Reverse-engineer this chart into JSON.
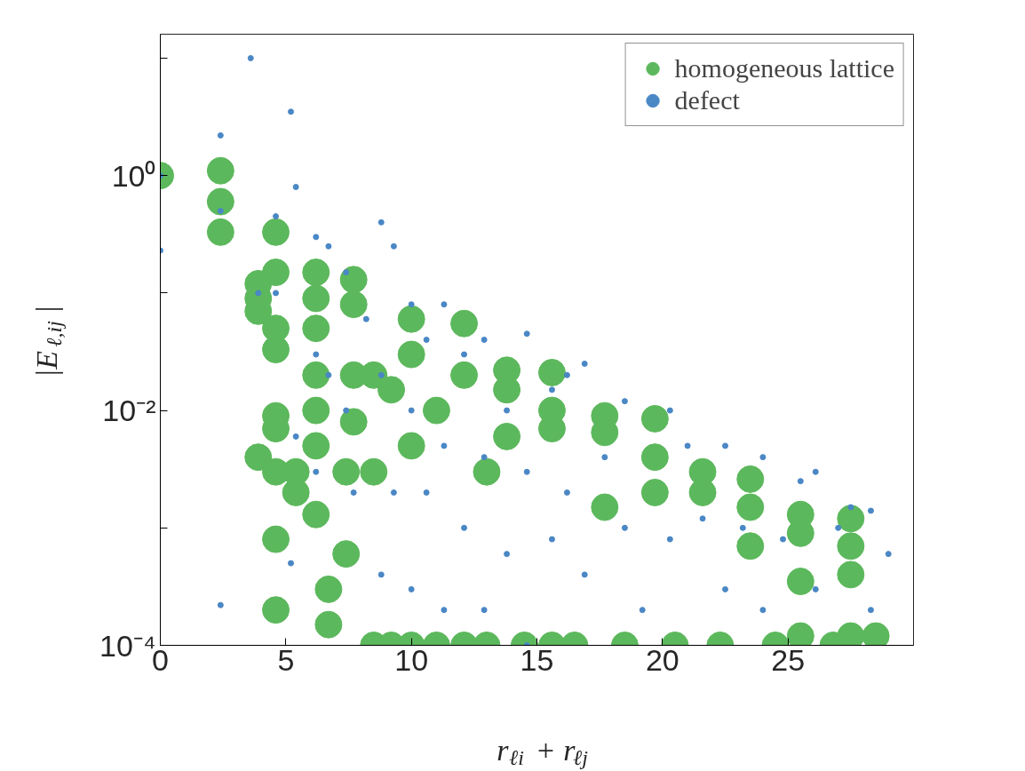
{
  "chart_data": {
    "type": "scatter",
    "xlabel": "r$_{ℓi}$ + r$_{ℓj}$",
    "ylabel": "|E$_{ℓ,ij}$|",
    "log": "y",
    "xlim": [
      0,
      30
    ],
    "xticks": [
      0,
      5,
      10,
      15,
      20,
      25
    ],
    "ylim": [
      0.0001,
      16
    ],
    "yticks": [
      {
        "value": 0.0001,
        "label": "10⁻⁴"
      },
      {
        "value": 0.001,
        "label": null
      },
      {
        "value": 0.01,
        "label": "10⁻²"
      },
      {
        "value": 0.1,
        "label": null
      },
      {
        "value": 1,
        "label": "10⁰"
      },
      {
        "value": 10,
        "label": null
      }
    ],
    "grid": false,
    "legend": "top right",
    "marker": "circle",
    "series": [
      {
        "name": "homogeneous lattice",
        "color": "#5cb85c",
        "x": [
          0,
          2.4,
          2.4,
          2.4,
          3.9,
          3.9,
          3.9,
          3.9,
          4.6,
          4.6,
          4.6,
          4.6,
          4.6,
          4.6,
          4.6,
          4.6,
          4.6,
          5.4,
          5.4,
          6.2,
          6.2,
          6.2,
          6.2,
          6.2,
          6.2,
          6.2,
          6.7,
          6.7,
          7.4,
          7.4,
          7.7,
          7.7,
          7.7,
          7.7,
          8.5,
          8.5,
          8.5,
          9.2,
          9.2,
          10,
          10,
          10,
          10,
          11,
          11,
          12.1,
          12.1,
          12.1,
          13,
          13,
          13.8,
          13.8,
          13.8,
          14.5,
          15.6,
          15.6,
          15.6,
          15.6,
          16.5,
          17.7,
          17.7,
          17.7,
          18.5,
          19.7,
          19.7,
          19.7,
          20.5,
          21.6,
          21.6,
          22.3,
          23.5,
          23.5,
          23.5,
          24.5,
          25.5,
          25.5,
          25.5,
          25.5,
          26.8,
          27.5,
          27.5,
          27.5,
          27.5,
          28.5
        ],
        "values": [
          1,
          1.1,
          0.6,
          0.33,
          0.12,
          0.09,
          0.07,
          0.004,
          0.33,
          0.15,
          0.05,
          0.033,
          0.009,
          0.007,
          0.003,
          0.0008,
          0.0002,
          0.003,
          0.002,
          0.15,
          0.09,
          0.05,
          0.02,
          0.01,
          0.005,
          0.0013,
          0.0003,
          0.00015,
          0.003,
          0.0006,
          0.13,
          0.08,
          0.02,
          0.008,
          0.02,
          0.003,
          0.0001,
          0.015,
          0.0001,
          0.06,
          0.03,
          0.005,
          0.0001,
          0.01,
          0.0001,
          0.055,
          0.02,
          0.0001,
          0.003,
          0.0001,
          0.022,
          0.015,
          0.006,
          0.0001,
          0.021,
          0.01,
          0.007,
          0.0001,
          0.0001,
          0.009,
          0.0065,
          0.0015,
          0.0001,
          0.0085,
          0.004,
          0.002,
          0.0001,
          0.003,
          0.002,
          0.0001,
          0.0026,
          0.0015,
          0.0007,
          0.0001,
          0.0013,
          0.0009,
          0.00035,
          0.00012,
          0.0001,
          0.0012,
          0.0007,
          0.0004,
          0.00012,
          0.00012
        ]
      },
      {
        "name": "defect",
        "color": "#4a87c5",
        "x": [
          0,
          0,
          2.4,
          2.4,
          2.4,
          3.6,
          3.9,
          4.6,
          4.6,
          5.2,
          5.4,
          5.4,
          5.2,
          6.2,
          6.2,
          6.2,
          6.7,
          6.7,
          7.4,
          7.4,
          7.7,
          8.2,
          8.8,
          8.8,
          8.8,
          9.3,
          9.3,
          10,
          10,
          10,
          10.6,
          10.6,
          11.3,
          11.3,
          11.3,
          12.1,
          12.1,
          12.9,
          12.9,
          12.9,
          13.8,
          13.8,
          14.6,
          14.6,
          14.6,
          15.6,
          15.6,
          16.2,
          16.2,
          16.9,
          16.9,
          17.7,
          18.5,
          18.5,
          19.2,
          20.3,
          20.3,
          21,
          21.6,
          22.5,
          22.5,
          23.2,
          24,
          24,
          24.8,
          25.5,
          26.1,
          26.1,
          27,
          27.5,
          28.3,
          28.3,
          29
        ],
        "values": [
          1,
          0.23,
          2.2,
          0.5,
          0.00022,
          10,
          0.1,
          0.45,
          0.1,
          3.5,
          0.8,
          0.006,
          0.0005,
          0.3,
          0.03,
          0.003,
          0.25,
          0.02,
          0.15,
          0.01,
          0.002,
          0.06,
          0.4,
          0.02,
          0.0004,
          0.25,
          0.002,
          0.08,
          0.01,
          0.0003,
          0.04,
          0.002,
          0.08,
          0.005,
          0.0002,
          0.03,
          0.001,
          0.04,
          0.004,
          0.0002,
          0.01,
          0.0006,
          0.045,
          0.003,
          0.0001,
          0.015,
          0.0008,
          0.02,
          0.002,
          0.025,
          0.0004,
          0.004,
          0.012,
          0.001,
          0.0002,
          0.01,
          0.0008,
          0.005,
          0.0012,
          0.005,
          0.0003,
          0.001,
          0.004,
          0.0002,
          0.0008,
          0.0025,
          0.003,
          0.0003,
          0.001,
          0.0015,
          0.0014,
          0.0002,
          0.0006
        ]
      }
    ]
  }
}
